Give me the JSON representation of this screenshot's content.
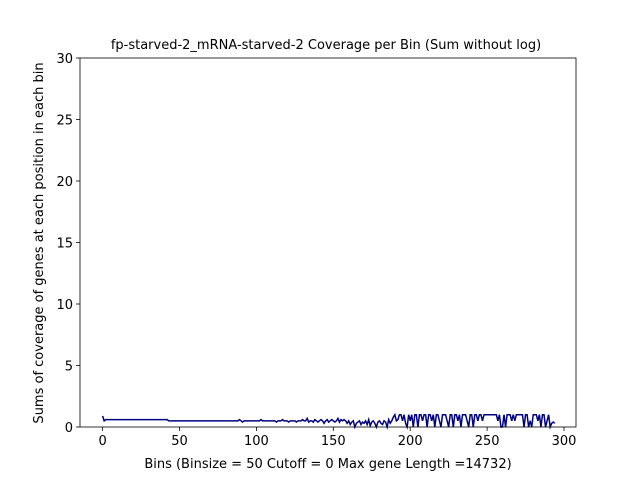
{
  "chart_data": {
    "type": "line",
    "title": "fp-starved-2_mRNA-starved-2 Coverage per Bin (Sum without log)",
    "xlabel": "Bins  (Binsize = 50 Cutoff = 0 Max gene Length =14732)",
    "ylabel": "Sums of coverage of genes at each position in each bin",
    "x": [
      0,
      1,
      2,
      3,
      4,
      5,
      6,
      7,
      8,
      9,
      10,
      11,
      12,
      13,
      14,
      15,
      16,
      17,
      18,
      19,
      20,
      21,
      22,
      23,
      24,
      25,
      26,
      27,
      28,
      29,
      30,
      31,
      32,
      33,
      34,
      35,
      36,
      37,
      38,
      39,
      40,
      41,
      42,
      43,
      44,
      45,
      46,
      47,
      48,
      49,
      50,
      51,
      52,
      53,
      54,
      55,
      56,
      57,
      58,
      59,
      60,
      61,
      62,
      63,
      64,
      65,
      66,
      67,
      68,
      69,
      70,
      71,
      72,
      73,
      74,
      75,
      76,
      77,
      78,
      79,
      80,
      81,
      82,
      83,
      84,
      85,
      86,
      87,
      88,
      89,
      90,
      91,
      92,
      93,
      94,
      95,
      96,
      97,
      98,
      99,
      100,
      101,
      102,
      103,
      104,
      105,
      106,
      107,
      108,
      109,
      110,
      111,
      112,
      113,
      114,
      115,
      116,
      117,
      118,
      119,
      120,
      121,
      122,
      123,
      124,
      125,
      126,
      127,
      128,
      129,
      130,
      131,
      132,
      133,
      134,
      135,
      136,
      137,
      138,
      139,
      140,
      141,
      142,
      143,
      144,
      145,
      146,
      147,
      148,
      149,
      150,
      151,
      152,
      153,
      154,
      155,
      156,
      157,
      158,
      159,
      160,
      161,
      162,
      163,
      164,
      165,
      166,
      167,
      168,
      169,
      170,
      171,
      172,
      173,
      174,
      175,
      176,
      177,
      178,
      179,
      180,
      181,
      182,
      183,
      184,
      185,
      186,
      187,
      188,
      189,
      190,
      191,
      192,
      193,
      194,
      195,
      196,
      197,
      198,
      199,
      200,
      201,
      202,
      203,
      204,
      205,
      206,
      207,
      208,
      209,
      210,
      211,
      212,
      213,
      214,
      215,
      216,
      217,
      218,
      219,
      220,
      221,
      222,
      223,
      224,
      225,
      226,
      227,
      228,
      229,
      230,
      231,
      232,
      233,
      234,
      235,
      236,
      237,
      238,
      239,
      240,
      241,
      242,
      243,
      244,
      245,
      246,
      247,
      248,
      249,
      250,
      251,
      252,
      253,
      254,
      255,
      256,
      257,
      258,
      259,
      260,
      261,
      262,
      263,
      264,
      265,
      266,
      267,
      268,
      269,
      270,
      271,
      272,
      273,
      274,
      275,
      276,
      277,
      278,
      279,
      280,
      281,
      282,
      283,
      284,
      285,
      286,
      287,
      288,
      289,
      290,
      291,
      292,
      293,
      294
    ],
    "series": [
      {
        "name": "coverage",
        "color": "#000080",
        "values": [
          0.9,
          0.5,
          0.6,
          0.6,
          0.6,
          0.6,
          0.6,
          0.6,
          0.6,
          0.6,
          0.6,
          0.6,
          0.6,
          0.6,
          0.6,
          0.6,
          0.6,
          0.6,
          0.6,
          0.6,
          0.6,
          0.6,
          0.6,
          0.6,
          0.6,
          0.6,
          0.6,
          0.6,
          0.6,
          0.6,
          0.6,
          0.6,
          0.6,
          0.6,
          0.6,
          0.6,
          0.6,
          0.6,
          0.6,
          0.6,
          0.6,
          0.6,
          0.6,
          0.5,
          0.5,
          0.5,
          0.5,
          0.5,
          0.5,
          0.5,
          0.5,
          0.5,
          0.5,
          0.5,
          0.5,
          0.5,
          0.5,
          0.5,
          0.5,
          0.5,
          0.5,
          0.5,
          0.5,
          0.5,
          0.5,
          0.5,
          0.5,
          0.5,
          0.5,
          0.5,
          0.5,
          0.5,
          0.5,
          0.5,
          0.5,
          0.5,
          0.5,
          0.5,
          0.5,
          0.5,
          0.5,
          0.5,
          0.5,
          0.5,
          0.5,
          0.5,
          0.5,
          0.5,
          0.5,
          0.6,
          0.5,
          0.4,
          0.5,
          0.5,
          0.5,
          0.5,
          0.5,
          0.5,
          0.5,
          0.5,
          0.5,
          0.5,
          0.5,
          0.6,
          0.5,
          0.5,
          0.5,
          0.5,
          0.5,
          0.5,
          0.5,
          0.5,
          0.5,
          0.4,
          0.5,
          0.5,
          0.5,
          0.6,
          0.5,
          0.5,
          0.5,
          0.4,
          0.5,
          0.5,
          0.5,
          0.5,
          0.4,
          0.5,
          0.5,
          0.5,
          0.6,
          0.5,
          0.5,
          0.7,
          0.4,
          0.5,
          0.5,
          0.4,
          0.6,
          0.5,
          0.4,
          0.5,
          0.6,
          0.5,
          0.3,
          0.5,
          0.6,
          0.4,
          0.5,
          0.6,
          0.5,
          0.4,
          0.5,
          0.7,
          0.4,
          0.6,
          0.5,
          0.6,
          0.5,
          0.3,
          0.5,
          0.2,
          0.4,
          0.5,
          0.0,
          0.3,
          0.4,
          0.5,
          0.2,
          0.4,
          0.3,
          0.5,
          0.2,
          0.6,
          0.1,
          0.4,
          0.5,
          0.3,
          0.0,
          0.4,
          0.5,
          0.3,
          0.2,
          0.5,
          0.4,
          0.0,
          0.6,
          0.3,
          0.5,
          0.8,
          1,
          0.5,
          0.6,
          1,
          1,
          0.5,
          1,
          0.3,
          0,
          1,
          0.5,
          1,
          0,
          1,
          1,
          0,
          1,
          1,
          0.5,
          1,
          1,
          0,
          1,
          1,
          0.5,
          1,
          0,
          1,
          1,
          0.5,
          0,
          1,
          1,
          1,
          0.5,
          0,
          1,
          1,
          0,
          1,
          1,
          0.5,
          1,
          0,
          1,
          1,
          1,
          0.5,
          0,
          1,
          1,
          0,
          1,
          1,
          0.5,
          1,
          1,
          0.5,
          1,
          1,
          1,
          1,
          1,
          1,
          1,
          1,
          1,
          0.5,
          1,
          0,
          0,
          1,
          0,
          1,
          1,
          1,
          0.5,
          1,
          0.5,
          1,
          1,
          1,
          1,
          1,
          0,
          1,
          1,
          0,
          0.5,
          0,
          1,
          1,
          1,
          0.5,
          1,
          0,
          1,
          1,
          0,
          0.5,
          1,
          0,
          0.3,
          0.4,
          0.3
        ]
      }
    ],
    "xlim": [
      -14.7,
      307.8
    ],
    "ylim": [
      0,
      30
    ],
    "xticks": [
      0,
      50,
      100,
      150,
      200,
      250,
      300
    ],
    "yticks": [
      0,
      5,
      10,
      15,
      20,
      25,
      30
    ]
  }
}
